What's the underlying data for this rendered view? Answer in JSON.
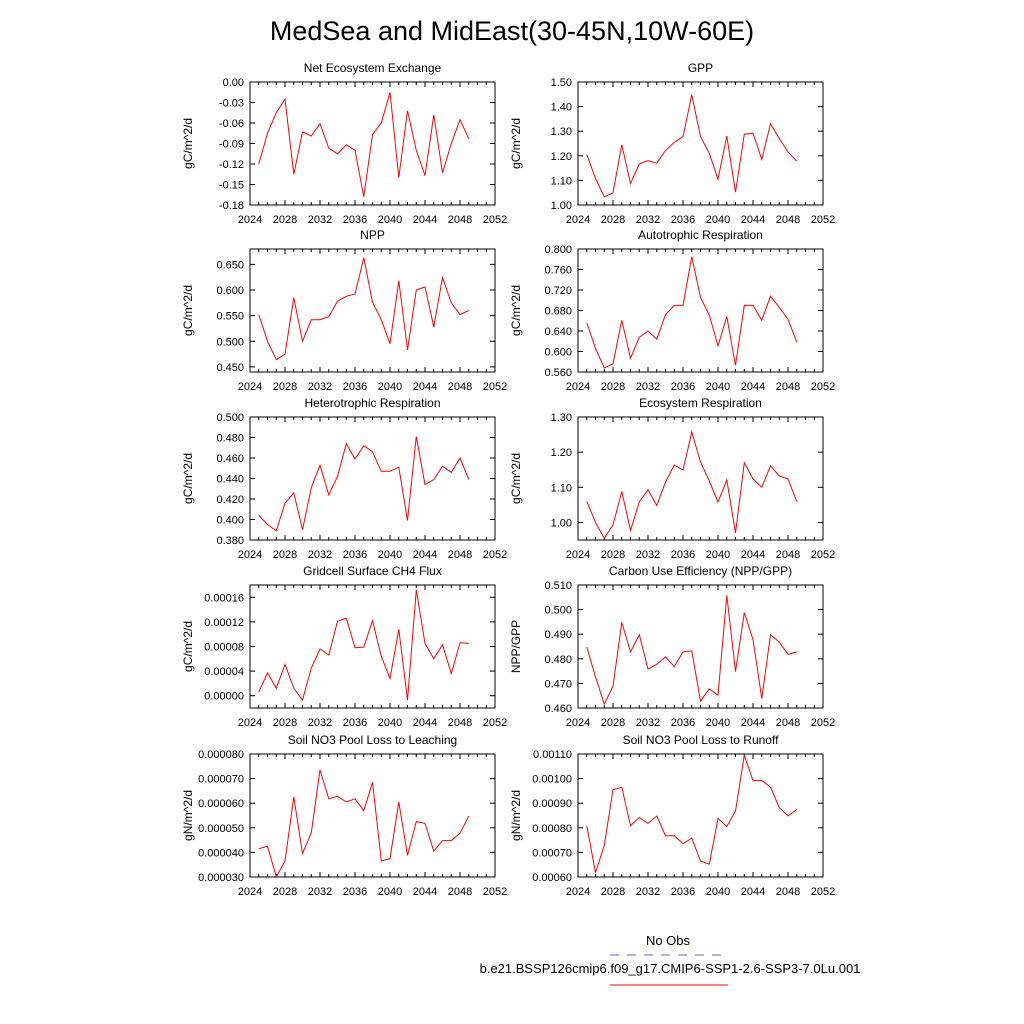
{
  "title": "MedSea and MidEast(30-45N,10W-60E)",
  "legend": {
    "obs_label": "No Obs",
    "obs_color": "#6666cc",
    "model_label": "b.e21.BSSP126cmip6.f09_g17.CMIP6-SSP1-2.6-SSP3-7.0Lu.001",
    "model_color": "#ff0000"
  },
  "chart_data": [
    {
      "type": "line",
      "title": "Net Ecosystem Exchange",
      "ylabel": "gC/m^2/d",
      "xlim": [
        2024,
        2052
      ],
      "xticks": [
        2024,
        2028,
        2032,
        2036,
        2040,
        2044,
        2048,
        2052
      ],
      "ylim": [
        -0.18,
        0.0
      ],
      "yticks": [
        "0.00",
        "-0.03",
        "-0.06",
        "-0.09",
        "-0.12",
        "-0.15",
        "-0.18"
      ],
      "ytick_values": [
        0.0,
        -0.03,
        -0.06,
        -0.09,
        -0.12,
        -0.15,
        -0.18
      ],
      "x": [
        2025,
        2026,
        2027,
        2028,
        2029,
        2030,
        2031,
        2032,
        2033,
        2034,
        2035,
        2036,
        2037,
        2038,
        2039,
        2040,
        2041,
        2042,
        2043,
        2044,
        2045,
        2046,
        2047,
        2048,
        2049
      ],
      "y": [
        -0.12,
        -0.075,
        -0.045,
        -0.025,
        -0.135,
        -0.073,
        -0.079,
        -0.061,
        -0.097,
        -0.105,
        -0.092,
        -0.1,
        -0.168,
        -0.077,
        -0.06,
        -0.015,
        -0.14,
        -0.042,
        -0.1,
        -0.137,
        -0.048,
        -0.133,
        -0.09,
        -0.055,
        -0.083
      ]
    },
    {
      "type": "line",
      "title": "GPP",
      "ylabel": "gC/m^2/d",
      "xlim": [
        2024,
        2052
      ],
      "xticks": [
        2024,
        2028,
        2032,
        2036,
        2040,
        2044,
        2048,
        2052
      ],
      "ylim": [
        1.0,
        1.5
      ],
      "yticks": [
        "1.50",
        "1.40",
        "1.30",
        "1.20",
        "1.10",
        "1.00"
      ],
      "ytick_values": [
        1.5,
        1.4,
        1.3,
        1.2,
        1.1,
        1.0
      ],
      "x": [
        2025,
        2026,
        2027,
        2028,
        2029,
        2030,
        2031,
        2032,
        2033,
        2034,
        2035,
        2036,
        2037,
        2038,
        2039,
        2040,
        2041,
        2042,
        2043,
        2044,
        2045,
        2046,
        2047,
        2048,
        2049
      ],
      "y": [
        1.205,
        1.108,
        1.033,
        1.049,
        1.245,
        1.087,
        1.167,
        1.18,
        1.17,
        1.222,
        1.255,
        1.278,
        1.448,
        1.278,
        1.21,
        1.105,
        1.28,
        1.052,
        1.288,
        1.292,
        1.185,
        1.33,
        1.27,
        1.215,
        1.178
      ]
    },
    {
      "type": "line",
      "title": "NPP",
      "ylabel": "gC/m^2/d",
      "xlim": [
        2024,
        2052
      ],
      "xticks": [
        2024,
        2028,
        2032,
        2036,
        2040,
        2044,
        2048,
        2052
      ],
      "ylim": [
        0.44,
        0.68
      ],
      "yticks": [
        "0.650",
        "0.600",
        "0.550",
        "0.500",
        "0.450"
      ],
      "ytick_values": [
        0.65,
        0.6,
        0.55,
        0.5,
        0.45
      ],
      "x": [
        2025,
        2026,
        2027,
        2028,
        2029,
        2030,
        2031,
        2032,
        2033,
        2034,
        2035,
        2036,
        2037,
        2038,
        2039,
        2040,
        2041,
        2042,
        2043,
        2044,
        2045,
        2046,
        2047,
        2048,
        2049
      ],
      "y": [
        0.552,
        0.5,
        0.464,
        0.475,
        0.585,
        0.5,
        0.542,
        0.542,
        0.548,
        0.578,
        0.588,
        0.592,
        0.663,
        0.576,
        0.542,
        0.495,
        0.618,
        0.483,
        0.6,
        0.606,
        0.528,
        0.624,
        0.575,
        0.552,
        0.56
      ]
    },
    {
      "type": "line",
      "title": "Autotrophic Respiration",
      "ylabel": "gC/m^2/d",
      "xlim": [
        2024,
        2052
      ],
      "xticks": [
        2024,
        2028,
        2032,
        2036,
        2040,
        2044,
        2048,
        2052
      ],
      "ylim": [
        0.56,
        0.8
      ],
      "yticks": [
        "0.800",
        "0.760",
        "0.720",
        "0.680",
        "0.640",
        "0.600",
        "0.560"
      ],
      "ytick_values": [
        0.8,
        0.76,
        0.72,
        0.68,
        0.64,
        0.6,
        0.56
      ],
      "x": [
        2025,
        2026,
        2027,
        2028,
        2029,
        2030,
        2031,
        2032,
        2033,
        2034,
        2035,
        2036,
        2037,
        2038,
        2039,
        2040,
        2041,
        2042,
        2043,
        2044,
        2045,
        2046,
        2047,
        2048,
        2049
      ],
      "y": [
        0.656,
        0.606,
        0.568,
        0.576,
        0.661,
        0.587,
        0.628,
        0.64,
        0.624,
        0.672,
        0.69,
        0.69,
        0.785,
        0.706,
        0.671,
        0.611,
        0.668,
        0.573,
        0.69,
        0.69,
        0.661,
        0.708,
        0.686,
        0.663,
        0.618
      ]
    },
    {
      "type": "line",
      "title": "Heterotrophic Respiration",
      "ylabel": "gC/m^2/d",
      "xlim": [
        2024,
        2052
      ],
      "xticks": [
        2024,
        2028,
        2032,
        2036,
        2040,
        2044,
        2048,
        2052
      ],
      "ylim": [
        0.38,
        0.5
      ],
      "yticks": [
        "0.500",
        "0.480",
        "0.460",
        "0.440",
        "0.420",
        "0.400",
        "0.380"
      ],
      "ytick_values": [
        0.5,
        0.48,
        0.46,
        0.44,
        0.42,
        0.4,
        0.38
      ],
      "x": [
        2025,
        2026,
        2027,
        2028,
        2029,
        2030,
        2031,
        2032,
        2033,
        2034,
        2035,
        2036,
        2037,
        2038,
        2039,
        2040,
        2041,
        2042,
        2043,
        2044,
        2045,
        2046,
        2047,
        2048,
        2049
      ],
      "y": [
        0.404,
        0.395,
        0.389,
        0.416,
        0.426,
        0.39,
        0.431,
        0.453,
        0.424,
        0.442,
        0.474,
        0.459,
        0.472,
        0.466,
        0.447,
        0.447,
        0.451,
        0.399,
        0.481,
        0.434,
        0.439,
        0.452,
        0.446,
        0.46,
        0.439
      ]
    },
    {
      "type": "line",
      "title": "Ecosystem Respiration",
      "ylabel": "gC/m^2/d",
      "xlim": [
        2024,
        2052
      ],
      "xticks": [
        2024,
        2028,
        2032,
        2036,
        2040,
        2044,
        2048,
        2052
      ],
      "ylim": [
        0.95,
        1.3
      ],
      "yticks": [
        "1.30",
        "1.20",
        "1.10",
        "1.00"
      ],
      "ytick_values": [
        1.3,
        1.2,
        1.1,
        1.0
      ],
      "x": [
        2025,
        2026,
        2027,
        2028,
        2029,
        2030,
        2031,
        2032,
        2033,
        2034,
        2035,
        2036,
        2037,
        2038,
        2039,
        2040,
        2041,
        2042,
        2043,
        2044,
        2045,
        2046,
        2047,
        2048,
        2049
      ],
      "y": [
        1.06,
        1.0,
        0.955,
        0.993,
        1.088,
        0.977,
        1.058,
        1.093,
        1.048,
        1.115,
        1.163,
        1.149,
        1.257,
        1.172,
        1.118,
        1.058,
        1.121,
        0.97,
        1.17,
        1.124,
        1.1,
        1.161,
        1.132,
        1.124,
        1.059
      ]
    },
    {
      "type": "line",
      "title": "Gridcell Surface CH4 Flux",
      "ylabel": "gC/m^2/d",
      "xlim": [
        2024,
        2052
      ],
      "xticks": [
        2024,
        2028,
        2032,
        2036,
        2040,
        2044,
        2048,
        2052
      ],
      "ylim": [
        -2e-05,
        0.00018
      ],
      "yticks": [
        "0.00016",
        "0.00012",
        "0.00008",
        "0.00004",
        "0.00000"
      ],
      "ytick_values": [
        0.00016,
        0.00012,
        8e-05,
        4e-05,
        0.0
      ],
      "x": [
        2025,
        2026,
        2027,
        2028,
        2029,
        2030,
        2031,
        2032,
        2033,
        2034,
        2035,
        2036,
        2037,
        2038,
        2039,
        2040,
        2041,
        2042,
        2043,
        2044,
        2045,
        2046,
        2047,
        2048,
        2049
      ],
      "y": [
        6e-06,
        3.7e-05,
        1.2e-05,
        5.1e-05,
        1.2e-05,
        -7e-06,
        4.5e-05,
        7.6e-05,
        6.6e-05,
        0.000121,
        0.000126,
        7.8e-05,
        7.9e-05,
        0.000122,
        6.4e-05,
        2.8e-05,
        0.000108,
        -7e-06,
        0.000172,
        8.5e-05,
        6e-05,
        8.3e-05,
        3.6e-05,
        8.6e-05,
        8.5e-05
      ]
    },
    {
      "type": "line",
      "title": "Carbon Use Efficiency (NPP/GPP)",
      "ylabel": "NPP/GPP",
      "xlim": [
        2024,
        2052
      ],
      "xticks": [
        2024,
        2028,
        2032,
        2036,
        2040,
        2044,
        2048,
        2052
      ],
      "ylim": [
        0.46,
        0.51
      ],
      "yticks": [
        "0.510",
        "0.500",
        "0.490",
        "0.480",
        "0.470",
        "0.460"
      ],
      "ytick_values": [
        0.51,
        0.5,
        0.49,
        0.48,
        0.47,
        0.46
      ],
      "x": [
        2025,
        2026,
        2027,
        2028,
        2029,
        2030,
        2031,
        2032,
        2033,
        2034,
        2035,
        2036,
        2037,
        2038,
        2039,
        2040,
        2041,
        2042,
        2043,
        2044,
        2045,
        2046,
        2047,
        2048,
        2049
      ],
      "y": [
        0.4848,
        0.4726,
        0.4616,
        0.4688,
        0.4948,
        0.4828,
        0.4898,
        0.4758,
        0.4778,
        0.4808,
        0.4768,
        0.4828,
        0.4832,
        0.4628,
        0.4678,
        0.4652,
        0.5058,
        0.4748,
        0.4988,
        0.4878,
        0.4638,
        0.4898,
        0.4868,
        0.4818,
        0.4828
      ]
    },
    {
      "type": "line",
      "title": "Soil NO3 Pool Loss to Leaching",
      "ylabel": "gN/m^2/d",
      "xlim": [
        2024,
        2052
      ],
      "xticks": [
        2024,
        2028,
        2032,
        2036,
        2040,
        2044,
        2048,
        2052
      ],
      "ylim": [
        3e-05,
        8e-05
      ],
      "yticks": [
        "0.000080",
        "0.000070",
        "0.000060",
        "0.000050",
        "0.000040",
        "0.000030"
      ],
      "ytick_values": [
        8e-05,
        7e-05,
        6e-05,
        5e-05,
        4e-05,
        3e-05
      ],
      "x": [
        2025,
        2026,
        2027,
        2028,
        2029,
        2030,
        2031,
        2032,
        2033,
        2034,
        2035,
        2036,
        2037,
        2038,
        2039,
        2040,
        2041,
        2042,
        2043,
        2044,
        2045,
        2046,
        2047,
        2048,
        2049
      ],
      "y": [
        4.15e-05,
        4.25e-05,
        3e-05,
        3.65e-05,
        6.25e-05,
        3.95e-05,
        4.8e-05,
        7.35e-05,
        6.18e-05,
        6.28e-05,
        6.05e-05,
        6.18e-05,
        5.7e-05,
        6.85e-05,
        3.65e-05,
        3.75e-05,
        6.05e-05,
        3.88e-05,
        5.25e-05,
        5.18e-05,
        4.05e-05,
        4.48e-05,
        4.48e-05,
        4.78e-05,
        5.48e-05
      ]
    },
    {
      "type": "line",
      "title": "Soil NO3 Pool Loss to Runoff",
      "ylabel": "gN/m^2/d",
      "xlim": [
        2024,
        2052
      ],
      "xticks": [
        2024,
        2028,
        2032,
        2036,
        2040,
        2044,
        2048,
        2052
      ],
      "ylim": [
        0.0006,
        0.0011
      ],
      "yticks": [
        "0.00110",
        "0.00100",
        "0.00090",
        "0.00080",
        "0.00070",
        "0.00060"
      ],
      "ytick_values": [
        0.0011,
        0.001,
        0.0009,
        0.0008,
        0.0007,
        0.0006
      ],
      "x": [
        2025,
        2026,
        2027,
        2028,
        2029,
        2030,
        2031,
        2032,
        2033,
        2034,
        2035,
        2036,
        2037,
        2038,
        2039,
        2040,
        2041,
        2042,
        2043,
        2044,
        2045,
        2046,
        2047,
        2048,
        2049
      ],
      "y": [
        0.000808,
        0.000618,
        0.000728,
        0.000955,
        0.000965,
        0.000808,
        0.000842,
        0.000818,
        0.000848,
        0.000768,
        0.000768,
        0.000735,
        0.000758,
        0.000665,
        0.000652,
        0.000838,
        0.000805,
        0.000868,
        0.001095,
        0.000992,
        0.000992,
        0.000965,
        0.000882,
        0.000848,
        0.000875
      ]
    }
  ]
}
